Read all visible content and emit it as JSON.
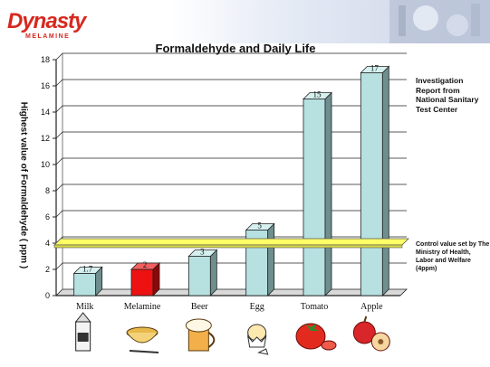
{
  "brand": {
    "name": "Dynasty",
    "tagline": "MELAMINE"
  },
  "colors": {
    "bar": "#b7e0e0",
    "highlight_bar": "#ee1111",
    "control_band": "#ffff66",
    "axis": "#222222",
    "brand": "#d7281e"
  },
  "icons": [
    "milk-carton-icon",
    "melamine-bowl-icon",
    "beer-mug-icon",
    "egg-icon",
    "tomato-icon",
    "apple-icon"
  ],
  "notes": {
    "investigation": "Investigation Report from National Sanitary Test Center",
    "control": "Control value set by The Ministry of Health, Labor and Welfare (4ppm)"
  },
  "chart_data": {
    "type": "bar",
    "title": "Formaldehyde and Daily Life",
    "xlabel": "",
    "ylabel": "Highest value of Formaldehyde ( ppm )",
    "categories": [
      "Milk",
      "Melamine",
      "Beer",
      "Egg",
      "Tomato",
      "Apple"
    ],
    "values": [
      1.7,
      2,
      3,
      5,
      15,
      17
    ],
    "value_labels": [
      "1.7",
      "2",
      "3",
      "5",
      "15",
      "17"
    ],
    "highlight_index": 1,
    "ylim": [
      0,
      18
    ],
    "yticks": [
      0,
      2,
      4,
      6,
      8,
      10,
      12,
      14,
      16,
      18
    ],
    "grid": true,
    "control_value": 4,
    "style": "3d"
  }
}
